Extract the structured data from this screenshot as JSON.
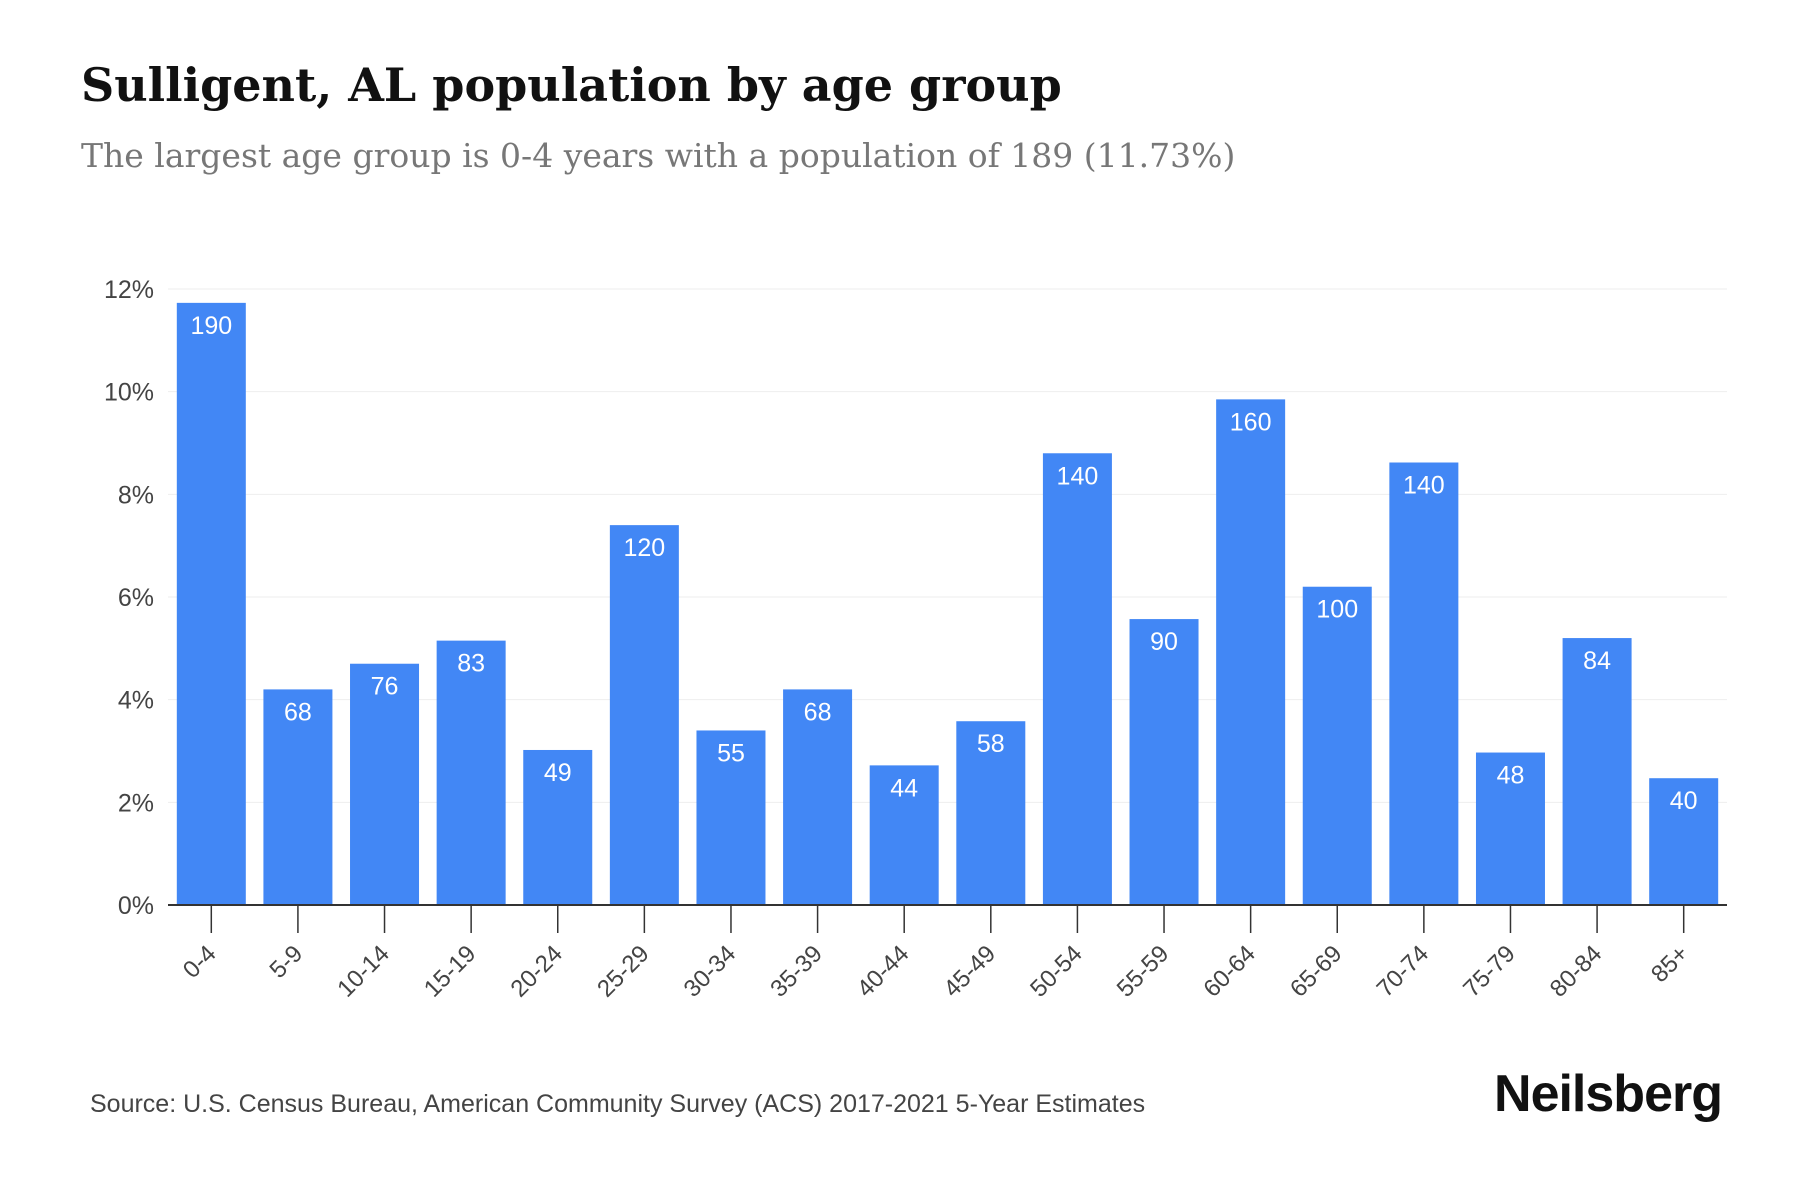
{
  "header": {
    "title": "Sulligent, AL population by age group",
    "subtitle": "The largest age group is 0-4 years with a population of 189 (11.73%)"
  },
  "footer": {
    "source": "Source: U.S. Census Bureau, American Community Survey (ACS) 2017-2021 5-Year Estimates",
    "brand": "Neilsberg"
  },
  "colors": {
    "bar": "#4287f5",
    "grid": "#eeeeee",
    "axis": "#333333",
    "label_inside": "#ffffff",
    "tick_text": "#444444"
  },
  "chart_data": {
    "type": "bar",
    "categories": [
      "0-4",
      "5-9",
      "10-14",
      "15-19",
      "20-24",
      "25-29",
      "30-34",
      "35-39",
      "40-44",
      "45-49",
      "50-54",
      "55-59",
      "60-64",
      "65-69",
      "70-74",
      "75-79",
      "80-84",
      "85+"
    ],
    "values": [
      11.73,
      4.2,
      4.7,
      5.15,
      3.02,
      7.4,
      3.4,
      4.2,
      2.72,
      3.58,
      8.8,
      5.57,
      9.85,
      6.2,
      8.62,
      2.97,
      5.2,
      2.47
    ],
    "data_labels": [
      "190",
      "68",
      "76",
      "83",
      "49",
      "120",
      "55",
      "68",
      "44",
      "58",
      "140",
      "90",
      "160",
      "100",
      "140",
      "48",
      "84",
      "40"
    ],
    "yticks": [
      0,
      2,
      4,
      6,
      8,
      10,
      12
    ],
    "ytick_labels": [
      "0%",
      "2%",
      "4%",
      "6%",
      "8%",
      "10%",
      "12%"
    ],
    "ylim": [
      0,
      12
    ],
    "grid": true,
    "legend": "none"
  }
}
